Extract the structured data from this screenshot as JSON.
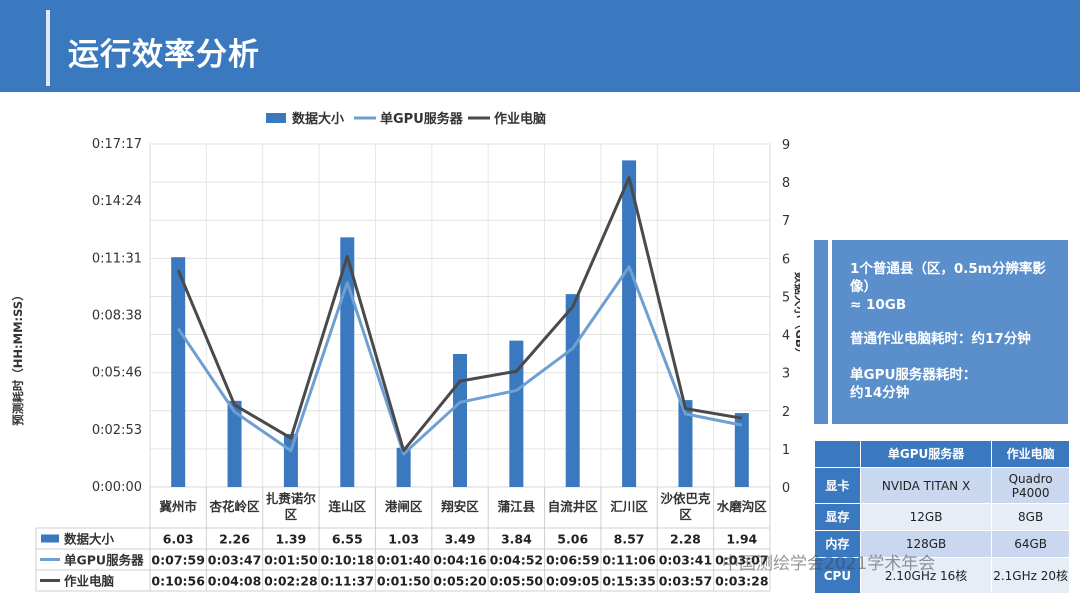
{
  "title": "运行效率分析",
  "colors": {
    "header": "#3a78bf",
    "bar": "#3a78bf",
    "gpu_line": "#6e9fd2",
    "pc_line": "#4a4a4a",
    "panel": "#5b8fcb"
  },
  "chart_data": {
    "type": "bar",
    "categories": [
      "冀州市",
      "杏花岭区",
      "扎赉诺尔区",
      "连山区",
      "港闸区",
      "翔安区",
      "蒲江县",
      "自流井区",
      "汇川区",
      "沙依巴克区",
      "水磨沟区"
    ],
    "ylabel_left": "预测耗时（HH:MM:SS）",
    "ylabel_right": "数据大小（GB）",
    "left_ticks": [
      "0:00:00",
      "0:02:53",
      "0:05:46",
      "0:08:38",
      "0:11:31",
      "0:14:24",
      "0:17:17"
    ],
    "left_ylim_seconds": [
      0,
      1037
    ],
    "right_ticks": [
      "0",
      "1",
      "2",
      "3",
      "4",
      "5",
      "6",
      "7",
      "8",
      "9"
    ],
    "right_ylim": [
      0,
      9
    ],
    "legend_position": "top",
    "series": [
      {
        "name": "数据大小",
        "kind": "bar",
        "axis": "right",
        "values": [
          6.03,
          2.26,
          1.39,
          6.55,
          1.03,
          3.49,
          3.84,
          5.06,
          8.57,
          2.28,
          1.94
        ],
        "labels": [
          "6.03",
          "2.26",
          "1.39",
          "6.55",
          "1.03",
          "3.49",
          "3.84",
          "5.06",
          "8.57",
          "2.28",
          "1.94"
        ]
      },
      {
        "name": "单GPU服务器",
        "kind": "line",
        "axis": "left",
        "values": [
          "0:07:59",
          "0:03:47",
          "0:01:50",
          "0:10:18",
          "0:01:40",
          "0:04:16",
          "0:04:52",
          "0:06:59",
          "0:11:06",
          "0:03:41",
          "0:03:07"
        ],
        "labels": [
          "0:07:59",
          "0:03:47",
          "0:01:50",
          "0:10:18",
          "0:01:40",
          "0:04:16",
          "0:04:52",
          "0:06:59",
          "0:11:06",
          "0:03:41",
          "0:03:07"
        ]
      },
      {
        "name": "作业电脑",
        "kind": "line",
        "axis": "left",
        "values": [
          "0:10:56",
          "0:04:08",
          "0:02:28",
          "0:11:37",
          "0:01:50",
          "0:05:20",
          "0:05:50",
          "0:09:05",
          "0:15:35",
          "0:03:57",
          "0:03:28"
        ],
        "labels": [
          "0:10:56",
          "0:04:08",
          "0:02:28",
          "0:11:37",
          "0:01:50",
          "0:05:20",
          "0:05:50",
          "0:09:05",
          "0:15:35",
          "0:03:57",
          "0:03:28"
        ]
      }
    ]
  },
  "info": {
    "line1": "1个普通县（区，0.5m分辨率影像）",
    "line2": "≈ 10GB",
    "line3": "普通作业电脑耗时：约17分钟",
    "line4": "单GPU服务器耗时：",
    "line5": "约14分钟"
  },
  "spec_table": {
    "headers": [
      "",
      "单GPU服务器",
      "作业电脑"
    ],
    "rows": [
      {
        "label": "显卡",
        "gpu": "NVIDA TITAN X",
        "pc": "Quadro P4000"
      },
      {
        "label": "显存",
        "gpu": "12GB",
        "pc": "8GB"
      },
      {
        "label": "内存",
        "gpu": "128GB",
        "pc": "64GB"
      },
      {
        "label": "CPU",
        "gpu": "2.10GHz 16核",
        "pc": "2.1GHz 20核"
      }
    ]
  },
  "watermark": "中国测绘学会2021学术年会"
}
